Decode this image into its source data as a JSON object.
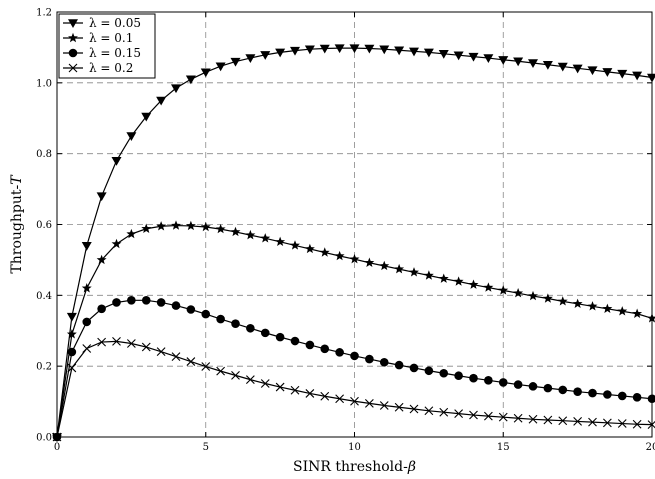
{
  "chart_data": {
    "type": "line",
    "xlabel": "SINR threshold-",
    "xlabel_symbol": "β",
    "ylabel": "Throughput-",
    "ylabel_symbol": "T",
    "xlim": [
      0,
      20
    ],
    "ylim": [
      0,
      1.2
    ],
    "x_ticks": [
      0,
      5,
      10,
      15,
      20
    ],
    "y_ticks": [
      0.0,
      0.2,
      0.4,
      0.6,
      0.8,
      1.0,
      1.2
    ],
    "x_tick_labels": [
      "0",
      "5",
      "10",
      "15",
      "20"
    ],
    "y_tick_labels": [
      "0.0",
      "0.2",
      "0.4",
      "0.6",
      "0.8",
      "1.0",
      "1.2"
    ],
    "grid": true,
    "grid_style": "dashed",
    "legend_position": "top-left",
    "x": [
      0,
      0.5,
      1,
      1.5,
      2,
      2.5,
      3,
      3.5,
      4,
      4.5,
      5,
      5.5,
      6,
      6.5,
      7,
      7.5,
      8,
      8.5,
      9,
      9.5,
      10,
      10.5,
      11,
      11.5,
      12,
      12.5,
      13,
      13.5,
      14,
      14.5,
      15,
      15.5,
      16,
      16.5,
      17,
      17.5,
      18,
      18.5,
      19,
      19.5,
      20
    ],
    "series": [
      {
        "name": "λ = 0.05",
        "marker": "triangle-down",
        "values": [
          0.0,
          0.34,
          0.54,
          0.68,
          0.78,
          0.85,
          0.905,
          0.95,
          0.985,
          1.01,
          1.03,
          1.047,
          1.06,
          1.07,
          1.079,
          1.086,
          1.091,
          1.095,
          1.097,
          1.098,
          1.098,
          1.097,
          1.095,
          1.092,
          1.089,
          1.086,
          1.082,
          1.078,
          1.074,
          1.07,
          1.065,
          1.061,
          1.056,
          1.051,
          1.046,
          1.041,
          1.036,
          1.031,
          1.026,
          1.021,
          1.015
        ]
      },
      {
        "name": "λ = 0.1",
        "marker": "star",
        "values": [
          0.0,
          0.29,
          0.42,
          0.5,
          0.545,
          0.573,
          0.588,
          0.595,
          0.597,
          0.596,
          0.593,
          0.587,
          0.579,
          0.57,
          0.561,
          0.551,
          0.541,
          0.531,
          0.521,
          0.511,
          0.502,
          0.492,
          0.483,
          0.474,
          0.465,
          0.456,
          0.447,
          0.439,
          0.43,
          0.422,
          0.414,
          0.406,
          0.398,
          0.391,
          0.383,
          0.376,
          0.369,
          0.362,
          0.355,
          0.348,
          0.335
        ]
      },
      {
        "name": "λ = 0.15",
        "marker": "circle",
        "values": [
          0.0,
          0.24,
          0.325,
          0.362,
          0.38,
          0.386,
          0.386,
          0.38,
          0.371,
          0.36,
          0.347,
          0.333,
          0.32,
          0.307,
          0.294,
          0.282,
          0.271,
          0.26,
          0.249,
          0.239,
          0.229,
          0.22,
          0.211,
          0.203,
          0.195,
          0.187,
          0.18,
          0.173,
          0.166,
          0.16,
          0.154,
          0.148,
          0.143,
          0.138,
          0.133,
          0.128,
          0.124,
          0.12,
          0.116,
          0.112,
          0.108
        ]
      },
      {
        "name": "λ = 0.2",
        "marker": "x",
        "values": [
          0.0,
          0.195,
          0.25,
          0.268,
          0.27,
          0.264,
          0.254,
          0.241,
          0.227,
          0.213,
          0.199,
          0.186,
          0.174,
          0.162,
          0.151,
          0.141,
          0.132,
          0.123,
          0.115,
          0.108,
          0.101,
          0.095,
          0.089,
          0.084,
          0.079,
          0.074,
          0.07,
          0.066,
          0.062,
          0.059,
          0.056,
          0.053,
          0.05,
          0.048,
          0.046,
          0.044,
          0.042,
          0.04,
          0.038,
          0.036,
          0.035
        ]
      }
    ]
  }
}
